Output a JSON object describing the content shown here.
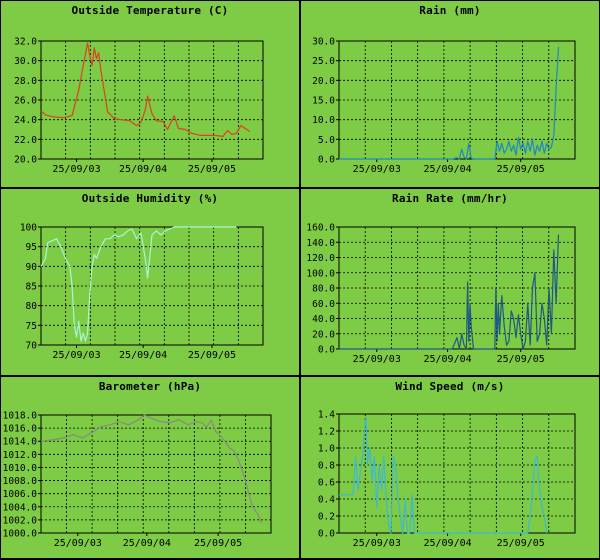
{
  "chart_data": [
    {
      "type": "line",
      "title": "Outside Temperature (C)",
      "ylim": [
        20.0,
        32.0
      ],
      "yticks": [
        "32.0",
        "30.0",
        "28.0",
        "26.0",
        "24.0",
        "22.0",
        "20.0"
      ],
      "xticks": [
        "25/09/03",
        "25/09/04",
        "25/09/05"
      ],
      "grid": true,
      "series": [
        {
          "color": "#e0401c",
          "x": [
            0.0,
            0.02,
            0.05,
            0.1,
            0.14,
            0.17,
            0.19,
            0.21,
            0.22,
            0.23,
            0.24,
            0.25,
            0.26,
            0.27,
            0.3,
            0.33,
            0.36,
            0.4,
            0.43,
            0.45,
            0.47,
            0.48,
            0.5,
            0.52,
            0.55,
            0.57,
            0.6,
            0.62,
            0.65,
            0.68,
            0.72,
            0.78,
            0.82,
            0.84,
            0.86,
            0.88,
            0.9,
            0.92,
            0.94
          ],
          "values": [
            24.9,
            24.5,
            24.3,
            24.2,
            24.4,
            27.0,
            29.5,
            31.8,
            30.5,
            29.5,
            31.3,
            30.2,
            30.8,
            29.0,
            24.8,
            24.1,
            24.0,
            23.9,
            23.4,
            23.7,
            25.0,
            26.4,
            24.6,
            23.9,
            23.8,
            23.0,
            24.4,
            23.1,
            23.0,
            22.6,
            22.4,
            22.4,
            22.3,
            22.9,
            22.5,
            22.6,
            23.4,
            23.1,
            22.8
          ]
        }
      ]
    },
    {
      "type": "line",
      "title": "Rain (mm)",
      "ylim": [
        0.0,
        30.0
      ],
      "yticks": [
        "30.0",
        "25.0",
        "20.0",
        "15.0",
        "10.0",
        "5.0",
        "0.0"
      ],
      "xticks": [
        "25/09/03",
        "25/09/04",
        "25/09/05"
      ],
      "grid": true,
      "series": [
        {
          "color": "#1e87c8",
          "x": [
            0.0,
            0.48,
            0.5,
            0.51,
            0.52,
            0.53,
            0.54,
            0.55,
            0.56,
            0.57,
            0.58,
            0.66,
            0.67,
            0.68,
            0.69,
            0.7,
            0.71,
            0.72,
            0.73,
            0.74,
            0.75,
            0.76,
            0.77,
            0.78,
            0.79,
            0.8,
            0.81,
            0.82,
            0.83,
            0.84,
            0.85,
            0.86,
            0.87,
            0.88,
            0.89,
            0.9,
            0.91,
            0.92,
            0.93
          ],
          "values": [
            0,
            0,
            0.3,
            0.0,
            2.5,
            0.5,
            0,
            4.0,
            0.2,
            0,
            0,
            0,
            4.5,
            2.0,
            4.0,
            1.5,
            2.5,
            4.5,
            2.0,
            3.5,
            1.0,
            5.5,
            2.5,
            4.0,
            1.5,
            4.5,
            2.0,
            5.0,
            1.0,
            3.5,
            2.0,
            4.5,
            1.5,
            4.0,
            2.5,
            3.0,
            6.0,
            18.0,
            28.5
          ]
        }
      ]
    },
    {
      "type": "line",
      "title": "Outside Humidity (%)",
      "ylim": [
        70,
        100
      ],
      "yticks": [
        "100",
        "95",
        "90",
        "85",
        "80",
        "75",
        "70"
      ],
      "xticks": [
        "25/09/03",
        "25/09/04",
        "25/09/05"
      ],
      "grid": true,
      "series": [
        {
          "color": "#aaf5d5",
          "x": [
            0.0,
            0.02,
            0.03,
            0.05,
            0.07,
            0.09,
            0.11,
            0.13,
            0.14,
            0.15,
            0.16,
            0.17,
            0.18,
            0.19,
            0.2,
            0.21,
            0.22,
            0.23,
            0.24,
            0.25,
            0.27,
            0.29,
            0.31,
            0.33,
            0.35,
            0.37,
            0.39,
            0.41,
            0.43,
            0.45,
            0.47,
            0.48,
            0.5,
            0.52,
            0.54,
            0.56,
            0.58,
            0.6,
            0.62,
            0.65,
            0.7,
            0.75,
            0.8,
            0.85,
            0.88
          ],
          "values": [
            90,
            92,
            96,
            96.5,
            97,
            95,
            92,
            90,
            85,
            75,
            72,
            76,
            71,
            73,
            71,
            73,
            83,
            90,
            93,
            92,
            95,
            97,
            97,
            98,
            97.5,
            98,
            99,
            99.5,
            97,
            98.5,
            92,
            87,
            98,
            99,
            98,
            99,
            99.5,
            100,
            100,
            100,
            100,
            100,
            100,
            100,
            100
          ]
        }
      ]
    },
    {
      "type": "line",
      "title": "Rain Rate (mm/hr)",
      "ylim": [
        0.0,
        160.0
      ],
      "yticks": [
        "160.0",
        "140.0",
        "120.0",
        "100.0",
        "80.0",
        "60.0",
        "40.0",
        "20.0",
        "0.0"
      ],
      "xticks": [
        "25/09/03",
        "25/09/04",
        "25/09/05"
      ],
      "grid": true,
      "series": [
        {
          "color": "#1d5a82",
          "x": [
            0.0,
            0.48,
            0.5,
            0.51,
            0.52,
            0.53,
            0.54,
            0.545,
            0.55,
            0.555,
            0.56,
            0.57,
            0.58,
            0.66,
            0.665,
            0.67,
            0.675,
            0.68,
            0.69,
            0.7,
            0.71,
            0.72,
            0.73,
            0.74,
            0.75,
            0.76,
            0.77,
            0.78,
            0.79,
            0.8,
            0.81,
            0.82,
            0.83,
            0.84,
            0.85,
            0.86,
            0.87,
            0.88,
            0.89,
            0.9,
            0.91,
            0.92,
            0.93
          ],
          "values": [
            0,
            0,
            15,
            0,
            20,
            5,
            0,
            88,
            10,
            60,
            30,
            0,
            0,
            0,
            80,
            10,
            60,
            20,
            70,
            30,
            5,
            10,
            50,
            40,
            15,
            45,
            20,
            0,
            10,
            60,
            5,
            80,
            100,
            10,
            20,
            60,
            40,
            5,
            80,
            20,
            130,
            60,
            150
          ]
        }
      ]
    },
    {
      "type": "line",
      "title": "Barometer (hPa)",
      "ylim": [
        1000.0,
        1018.0
      ],
      "yticks": [
        "1018.0",
        "1016.0",
        "1014.0",
        "1012.0",
        "1010.0",
        "1008.0",
        "1006.0",
        "1004.0",
        "1002.0",
        "1000.0"
      ],
      "xticks": [
        "25/09/03",
        "25/09/04",
        "25/09/05"
      ],
      "grid": true,
      "series": [
        {
          "color": "#888888",
          "x": [
            0.0,
            0.05,
            0.1,
            0.14,
            0.18,
            0.22,
            0.26,
            0.3,
            0.34,
            0.38,
            0.42,
            0.45,
            0.48,
            0.52,
            0.56,
            0.6,
            0.64,
            0.68,
            0.7,
            0.72,
            0.74,
            0.76,
            0.78,
            0.8,
            0.82,
            0.84,
            0.86,
            0.88,
            0.9,
            0.92,
            0.94,
            0.96
          ],
          "values": [
            1014.0,
            1014.2,
            1014.5,
            1015.0,
            1014.5,
            1015.3,
            1016.2,
            1016.5,
            1017.0,
            1016.5,
            1017.2,
            1018.0,
            1017.5,
            1017.0,
            1016.8,
            1017.3,
            1016.5,
            1017.0,
            1016.8,
            1016.2,
            1017.2,
            1015.5,
            1014.8,
            1014.0,
            1013.0,
            1012.5,
            1011.0,
            1009.0,
            1006.5,
            1004.0,
            1003.0,
            1001.5
          ]
        }
      ]
    },
    {
      "type": "line",
      "title": "Wind Speed (m/s)",
      "ylim": [
        0.0,
        1.4
      ],
      "yticks": [
        "1.4",
        "1.2",
        "1.0",
        "0.8",
        "0.6",
        "0.4",
        "0.2",
        "0.0"
      ],
      "xticks": [
        "25/09/03",
        "25/09/04",
        "25/09/05"
      ],
      "grid": true,
      "series": [
        {
          "color": "#3fb8d4",
          "x": [
            0.0,
            0.02,
            0.04,
            0.06,
            0.07,
            0.08,
            0.09,
            0.1,
            0.11,
            0.115,
            0.12,
            0.13,
            0.14,
            0.15,
            0.16,
            0.17,
            0.18,
            0.19,
            0.2,
            0.21,
            0.22,
            0.23,
            0.24,
            0.25,
            0.26,
            0.27,
            0.28,
            0.29,
            0.3,
            0.31,
            0.32,
            0.33,
            0.34,
            0.8,
            0.81,
            0.82,
            0.83,
            0.84,
            0.85,
            0.86,
            0.87,
            0.88
          ],
          "values": [
            0.45,
            0.45,
            0.45,
            0.45,
            0.9,
            0.5,
            0.7,
            0.9,
            1.3,
            1.35,
            0.8,
            1.0,
            0.6,
            0.9,
            0.3,
            0.8,
            0.5,
            0.9,
            0.4,
            0.1,
            0.0,
            0.9,
            0.8,
            0.4,
            0.2,
            0.0,
            0.4,
            0.0,
            0.0,
            0.45,
            0.0,
            0.0,
            0.0,
            0.0,
            0.2,
            0.5,
            0.85,
            0.9,
            0.5,
            0.3,
            0.2,
            0.0
          ]
        }
      ]
    }
  ]
}
